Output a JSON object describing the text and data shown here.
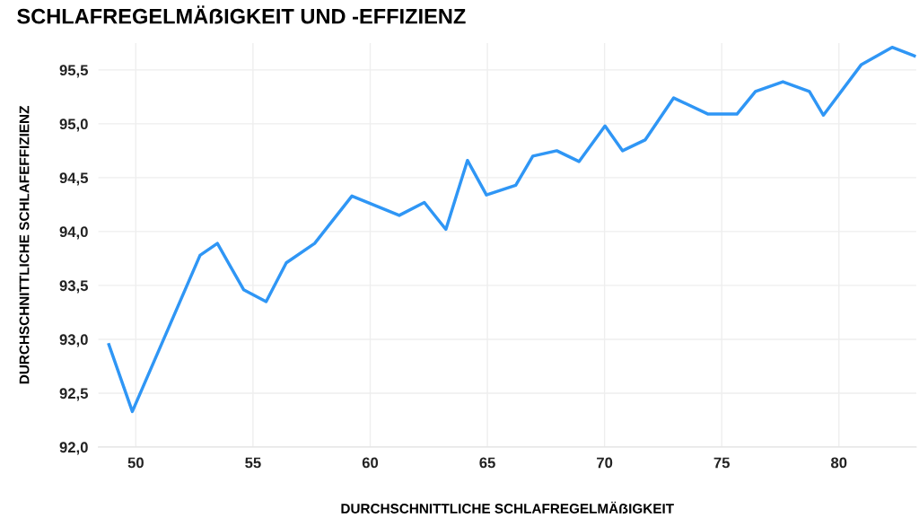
{
  "chart_data": {
    "type": "line",
    "title": "SCHLAFREGELMÄẞIGKEIT UND -EFFIZIENZ",
    "xlabel": "DURCHSCHNITTLICHE SCHLAFREGELMÄẞIGKEIT",
    "ylabel": "DURCHSCHNITTLICHE SCHLAFEFFIZIENZ",
    "x": [
      48.85,
      49.85,
      52.74,
      53.48,
      54.6,
      55.56,
      56.42,
      57.63,
      59.22,
      61.24,
      62.31,
      63.23,
      64.15,
      64.96,
      66.21,
      66.94,
      67.96,
      68.91,
      70.02,
      70.77,
      71.73,
      72.95,
      74.42,
      75.65,
      76.44,
      77.61,
      78.74,
      79.34,
      80.96,
      82.27,
      83.22
    ],
    "series": [
      {
        "color": "#2f96f5",
        "values": [
          92.95,
          92.33,
          93.78,
          93.89,
          93.46,
          93.35,
          93.71,
          93.89,
          94.33,
          94.15,
          94.27,
          94.02,
          94.66,
          94.34,
          94.43,
          94.7,
          94.75,
          94.65,
          94.98,
          94.75,
          94.85,
          95.24,
          95.09,
          95.09,
          95.3,
          95.39,
          95.3,
          95.08,
          95.55,
          95.71,
          95.63
        ]
      }
    ],
    "xlim": [
      48.4,
      83.3
    ],
    "xticks": [
      50,
      55,
      60,
      65,
      70,
      75,
      80
    ],
    "ylim": [
      92.0,
      95.75
    ],
    "yticks": [
      {
        "value": 92.0,
        "label": "92,0"
      },
      {
        "value": 92.5,
        "label": "92,5"
      },
      {
        "value": 93.0,
        "label": "93,0"
      },
      {
        "value": 93.5,
        "label": "93,5"
      },
      {
        "value": 94.0,
        "label": "94,0"
      },
      {
        "value": 94.5,
        "label": "94,5"
      },
      {
        "value": 95.0,
        "label": "95,0"
      },
      {
        "value": 95.5,
        "label": "95,5"
      }
    ],
    "grid": true,
    "marker": "none",
    "line_style": "solid"
  }
}
